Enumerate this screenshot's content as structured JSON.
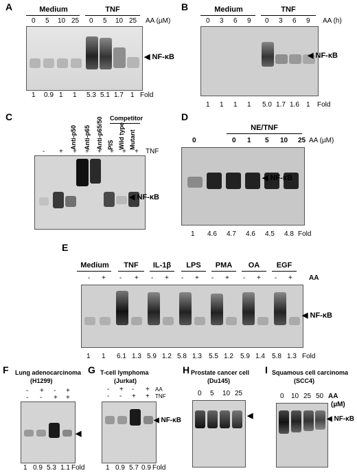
{
  "panel_a": {
    "label": "A",
    "groups": [
      "Medium",
      "TNF"
    ],
    "unit": "AA (µM)",
    "lanes": [
      "0",
      "5",
      "10",
      "25",
      "0",
      "5",
      "10",
      "25"
    ],
    "band": "NF-κB",
    "fold": [
      "1",
      "0.9",
      "1",
      "1",
      "5.3",
      "5.1",
      "1.7",
      "1"
    ],
    "fold_label": "Fold"
  },
  "panel_b": {
    "label": "B",
    "groups": [
      "Medium",
      "TNF"
    ],
    "unit": "AA (h)",
    "lanes": [
      "0",
      "3",
      "6",
      "9",
      "0",
      "3",
      "6",
      "9"
    ],
    "band": "NF-κB",
    "fold": [
      "1",
      "1",
      "1",
      "1",
      "5.0",
      "1.7",
      "1.6",
      "1"
    ],
    "fold_label": "Fold"
  },
  "panel_c": {
    "label": "C",
    "competitor": "Competitor",
    "columns": [
      "Anti-p50",
      "Anti-p65",
      "Anti-p65/50",
      "PIS",
      "Wild type",
      "Mutant"
    ],
    "signs": [
      "-",
      "+",
      "+",
      "+",
      "+",
      "+",
      "+",
      "+"
    ],
    "treatment": "TNF",
    "band": "NF-κB"
  },
  "panel_d": {
    "label": "D",
    "group": "NE/TNF",
    "unit": "AA (µM)",
    "lanes": [
      "0",
      "0",
      "1",
      "5",
      "10",
      "25"
    ],
    "band": "NF-κB",
    "fold": [
      "1",
      "4.6",
      "4.7",
      "4.6",
      "4.5",
      "4.8"
    ],
    "fold_label": "Fold"
  },
  "panel_e": {
    "label": "E",
    "groups": [
      "Medium",
      "TNF",
      "IL-1β",
      "LPS",
      "PMA",
      "OA",
      "EGF"
    ],
    "signs": [
      "-",
      "+",
      "-",
      "+",
      "-",
      "+",
      "-",
      "+",
      "-",
      "+",
      "-",
      "+",
      "-",
      "+"
    ],
    "unit": "AA",
    "band": "NF-κB",
    "fold": [
      "1",
      "1",
      "6.1",
      "1.3",
      "5.9",
      "1.2",
      "5.8",
      "1.3",
      "5.5",
      "1.2",
      "5.9",
      "1.4",
      "5.8",
      "1.3"
    ],
    "fold_label": "Fold"
  },
  "panel_f": {
    "label": "F",
    "title": "Lung adenocarcinoma",
    "subtitle": "(H1299)",
    "row1": [
      "-",
      "+",
      "-",
      "+"
    ],
    "row2": [
      "-",
      "-",
      "+",
      "+"
    ],
    "fold": [
      "1",
      "0.9",
      "5.3",
      "1.1"
    ],
    "fold_label": "Fold"
  },
  "panel_g": {
    "label": "G",
    "title": "T-cell lymphoma",
    "subtitle": "(Jurkat)",
    "row1": [
      "-",
      "+",
      "-",
      "+"
    ],
    "row2": [
      "-",
      "-",
      "+",
      "+"
    ],
    "row1_label": "AA",
    "row2_label": "TNF",
    "band": "NF-κB",
    "fold": [
      "1",
      "0.9",
      "5.7",
      "0.9"
    ],
    "fold_label": "Fold"
  },
  "panel_h": {
    "label": "H",
    "title": "Prostate cancer cell",
    "subtitle": "(Du145)",
    "lanes": [
      "0",
      "5",
      "10",
      "25"
    ]
  },
  "panel_i": {
    "label": "I",
    "title": "Squamous cell carcinoma",
    "subtitle": "(SCC4)",
    "lanes": [
      "0",
      "10",
      "25",
      "50"
    ],
    "unit": "AA",
    "unit2": "(µM)",
    "band": "NF-κB"
  }
}
